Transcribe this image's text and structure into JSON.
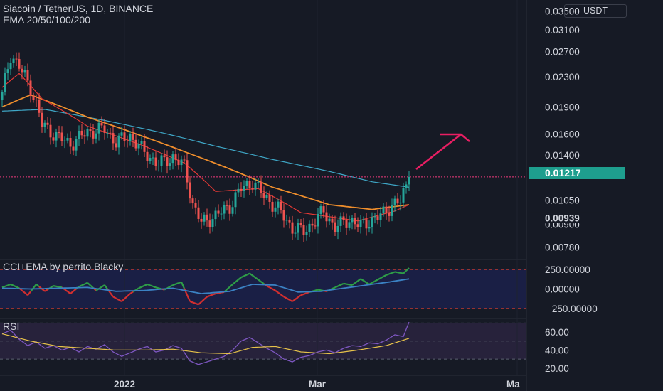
{
  "header": {
    "symbol_title": "Siacoin / TetherUS, 1D, BINANCE",
    "indicator": "EMA 20/50/100/200"
  },
  "currency_button": "USDT",
  "price_axis": {
    "labels": [
      "0.03500",
      "0.03100",
      "0.02700",
      "0.02300",
      "0.01900",
      "0.01600",
      "0.01400",
      "0.01050",
      "0.00900",
      "0.00780"
    ],
    "current_price": "0.01217",
    "marker_price": "0.00939"
  },
  "cci_panel": {
    "title": "CCI+EMA by perrito Blacky",
    "axis_labels": [
      "250.00000",
      "0.00000",
      "−250.00000"
    ],
    "levels": [
      250,
      0,
      -250
    ]
  },
  "rsi_panel": {
    "title": "RSI",
    "axis_labels": [
      "60.00",
      "40.00",
      "20.00"
    ]
  },
  "time_axis": {
    "labels": [
      "2022",
      "Mar",
      "Ma"
    ]
  },
  "colors": {
    "background": "#161a25",
    "up": "#26a69a",
    "down": "#ef5350",
    "ema20": "#e53935",
    "ema50": "#ef8e2c",
    "ema100": "#3fa8c8",
    "price_line": "#f23b7d",
    "arrow": "#e91e63",
    "cci_up": "#2e9e47",
    "cci_down": "#d32f2f",
    "cci_ema": "#3b82c4",
    "rsi": "#7e57c2",
    "rsi_ma": "#e7c34a"
  },
  "chart_data": [
    {
      "type": "candlestick",
      "title": "Siacoin / TetherUS, 1D, BINANCE",
      "price_scale": "log",
      "ylim": [
        0.0072,
        0.0375
      ],
      "current_price": 0.01217,
      "anchors": [
        {
          "bar": 0,
          "close": 0.0205
        },
        {
          "bar": 3,
          "close": 0.0265
        },
        {
          "bar": 6,
          "close": 0.0245
        },
        {
          "bar": 10,
          "close": 0.0215
        },
        {
          "bar": 14,
          "close": 0.017
        },
        {
          "bar": 19,
          "close": 0.0158
        },
        {
          "bar": 24,
          "close": 0.015
        },
        {
          "bar": 30,
          "close": 0.0162
        },
        {
          "bar": 36,
          "close": 0.0165
        },
        {
          "bar": 40,
          "close": 0.0152
        },
        {
          "bar": 45,
          "close": 0.0158
        },
        {
          "bar": 50,
          "close": 0.0142
        },
        {
          "bar": 55,
          "close": 0.0132
        },
        {
          "bar": 60,
          "close": 0.0138
        },
        {
          "bar": 64,
          "close": 0.013
        },
        {
          "bar": 67,
          "close": 0.0102
        },
        {
          "bar": 70,
          "close": 0.0091
        },
        {
          "bar": 75,
          "close": 0.0095
        },
        {
          "bar": 80,
          "close": 0.0101
        },
        {
          "bar": 84,
          "close": 0.0113
        },
        {
          "bar": 88,
          "close": 0.0118
        },
        {
          "bar": 92,
          "close": 0.0108
        },
        {
          "bar": 97,
          "close": 0.0099
        },
        {
          "bar": 102,
          "close": 0.0088
        },
        {
          "bar": 106,
          "close": 0.0086
        },
        {
          "bar": 110,
          "close": 0.0092
        },
        {
          "bar": 113,
          "close": 0.0098
        },
        {
          "bar": 117,
          "close": 0.0088
        },
        {
          "bar": 122,
          "close": 0.0093
        },
        {
          "bar": 126,
          "close": 0.0089
        },
        {
          "bar": 129,
          "close": 0.0092
        },
        {
          "bar": 133,
          "close": 0.0095
        },
        {
          "bar": 137,
          "close": 0.0102
        },
        {
          "bar": 140,
          "close": 0.0104
        },
        {
          "bar": 143,
          "close": 0.0121
        }
      ],
      "ema20": [
        [
          0,
          0.0215
        ],
        [
          6,
          0.0235
        ],
        [
          14,
          0.02
        ],
        [
          30,
          0.0168
        ],
        [
          50,
          0.0148
        ],
        [
          64,
          0.0133
        ],
        [
          75,
          0.0111
        ],
        [
          90,
          0.0113
        ],
        [
          105,
          0.0097
        ],
        [
          125,
          0.0092
        ],
        [
          138,
          0.0098
        ],
        [
          143,
          0.0102
        ]
      ],
      "ema50": [
        [
          0,
          0.019
        ],
        [
          10,
          0.0205
        ],
        [
          30,
          0.0178
        ],
        [
          50,
          0.0157
        ],
        [
          65,
          0.0142
        ],
        [
          80,
          0.0128
        ],
        [
          95,
          0.0114
        ],
        [
          115,
          0.0102
        ],
        [
          130,
          0.0099
        ],
        [
          143,
          0.0102
        ]
      ],
      "ema100": [
        [
          0,
          0.0185
        ],
        [
          15,
          0.0187
        ],
        [
          35,
          0.0175
        ],
        [
          55,
          0.0162
        ],
        [
          75,
          0.0148
        ],
        [
          95,
          0.0136
        ],
        [
          115,
          0.0126
        ],
        [
          130,
          0.0118
        ],
        [
          143,
          0.0114
        ]
      ],
      "annotation": "arrow pointing up"
    },
    {
      "type": "line",
      "title": "CCI+EMA by perrito Blacky",
      "ylim": [
        -380,
        380
      ],
      "levels": [
        250,
        0,
        -250
      ],
      "cci": [
        [
          0,
          20
        ],
        [
          3,
          60
        ],
        [
          6,
          10
        ],
        [
          9,
          -80
        ],
        [
          12,
          60
        ],
        [
          15,
          -30
        ],
        [
          18,
          40
        ],
        [
          21,
          20
        ],
        [
          24,
          -60
        ],
        [
          27,
          30
        ],
        [
          30,
          80
        ],
        [
          33,
          -20
        ],
        [
          36,
          50
        ],
        [
          39,
          -100
        ],
        [
          42,
          -160
        ],
        [
          45,
          -60
        ],
        [
          48,
          10
        ],
        [
          51,
          60
        ],
        [
          54,
          20
        ],
        [
          57,
          -10
        ],
        [
          60,
          50
        ],
        [
          63,
          90
        ],
        [
          66,
          -160
        ],
        [
          69,
          -200
        ],
        [
          72,
          -100
        ],
        [
          75,
          -60
        ],
        [
          78,
          -40
        ],
        [
          81,
          60
        ],
        [
          84,
          150
        ],
        [
          87,
          200
        ],
        [
          90,
          120
        ],
        [
          93,
          40
        ],
        [
          96,
          -20
        ],
        [
          99,
          -100
        ],
        [
          102,
          -160
        ],
        [
          105,
          -80
        ],
        [
          108,
          -40
        ],
        [
          111,
          -10
        ],
        [
          114,
          -30
        ],
        [
          117,
          20
        ],
        [
          120,
          70
        ],
        [
          123,
          50
        ],
        [
          126,
          130
        ],
        [
          129,
          60
        ],
        [
          132,
          120
        ],
        [
          135,
          180
        ],
        [
          138,
          220
        ],
        [
          141,
          200
        ],
        [
          143,
          270
        ]
      ],
      "ema": [
        [
          0,
          10
        ],
        [
          10,
          0
        ],
        [
          20,
          10
        ],
        [
          30,
          20
        ],
        [
          40,
          -30
        ],
        [
          50,
          -20
        ],
        [
          60,
          10
        ],
        [
          70,
          -60
        ],
        [
          80,
          -30
        ],
        [
          88,
          60
        ],
        [
          96,
          50
        ],
        [
          104,
          -40
        ],
        [
          112,
          -30
        ],
        [
          120,
          10
        ],
        [
          130,
          60
        ],
        [
          136,
          90
        ],
        [
          143,
          130
        ]
      ]
    },
    {
      "type": "line",
      "title": "RSI",
      "ylim": [
        12,
        75
      ],
      "rsi": [
        [
          0,
          58
        ],
        [
          3,
          62
        ],
        [
          6,
          52
        ],
        [
          9,
          45
        ],
        [
          12,
          49
        ],
        [
          15,
          42
        ],
        [
          18,
          45
        ],
        [
          21,
          40
        ],
        [
          24,
          43
        ],
        [
          27,
          38
        ],
        [
          30,
          44
        ],
        [
          33,
          41
        ],
        [
          36,
          46
        ],
        [
          39,
          38
        ],
        [
          42,
          33
        ],
        [
          45,
          37
        ],
        [
          48,
          41
        ],
        [
          51,
          44
        ],
        [
          54,
          38
        ],
        [
          57,
          40
        ],
        [
          60,
          45
        ],
        [
          63,
          42
        ],
        [
          66,
          28
        ],
        [
          69,
          24
        ],
        [
          72,
          27
        ],
        [
          75,
          30
        ],
        [
          78,
          33
        ],
        [
          81,
          40
        ],
        [
          84,
          50
        ],
        [
          87,
          54
        ],
        [
          90,
          48
        ],
        [
          93,
          42
        ],
        [
          96,
          37
        ],
        [
          99,
          30
        ],
        [
          102,
          27
        ],
        [
          105,
          32
        ],
        [
          108,
          34
        ],
        [
          111,
          38
        ],
        [
          114,
          40
        ],
        [
          117,
          37
        ],
        [
          120,
          42
        ],
        [
          123,
          45
        ],
        [
          126,
          44
        ],
        [
          129,
          48
        ],
        [
          132,
          47
        ],
        [
          135,
          51
        ],
        [
          138,
          57
        ],
        [
          141,
          55
        ],
        [
          143,
          71
        ]
      ],
      "ma": [
        [
          0,
          58
        ],
        [
          10,
          50
        ],
        [
          20,
          44
        ],
        [
          30,
          42
        ],
        [
          40,
          40
        ],
        [
          50,
          40
        ],
        [
          60,
          41
        ],
        [
          70,
          37
        ],
        [
          80,
          36
        ],
        [
          88,
          43
        ],
        [
          96,
          44
        ],
        [
          105,
          38
        ],
        [
          115,
          36
        ],
        [
          125,
          40
        ],
        [
          135,
          45
        ],
        [
          143,
          53
        ]
      ]
    }
  ]
}
